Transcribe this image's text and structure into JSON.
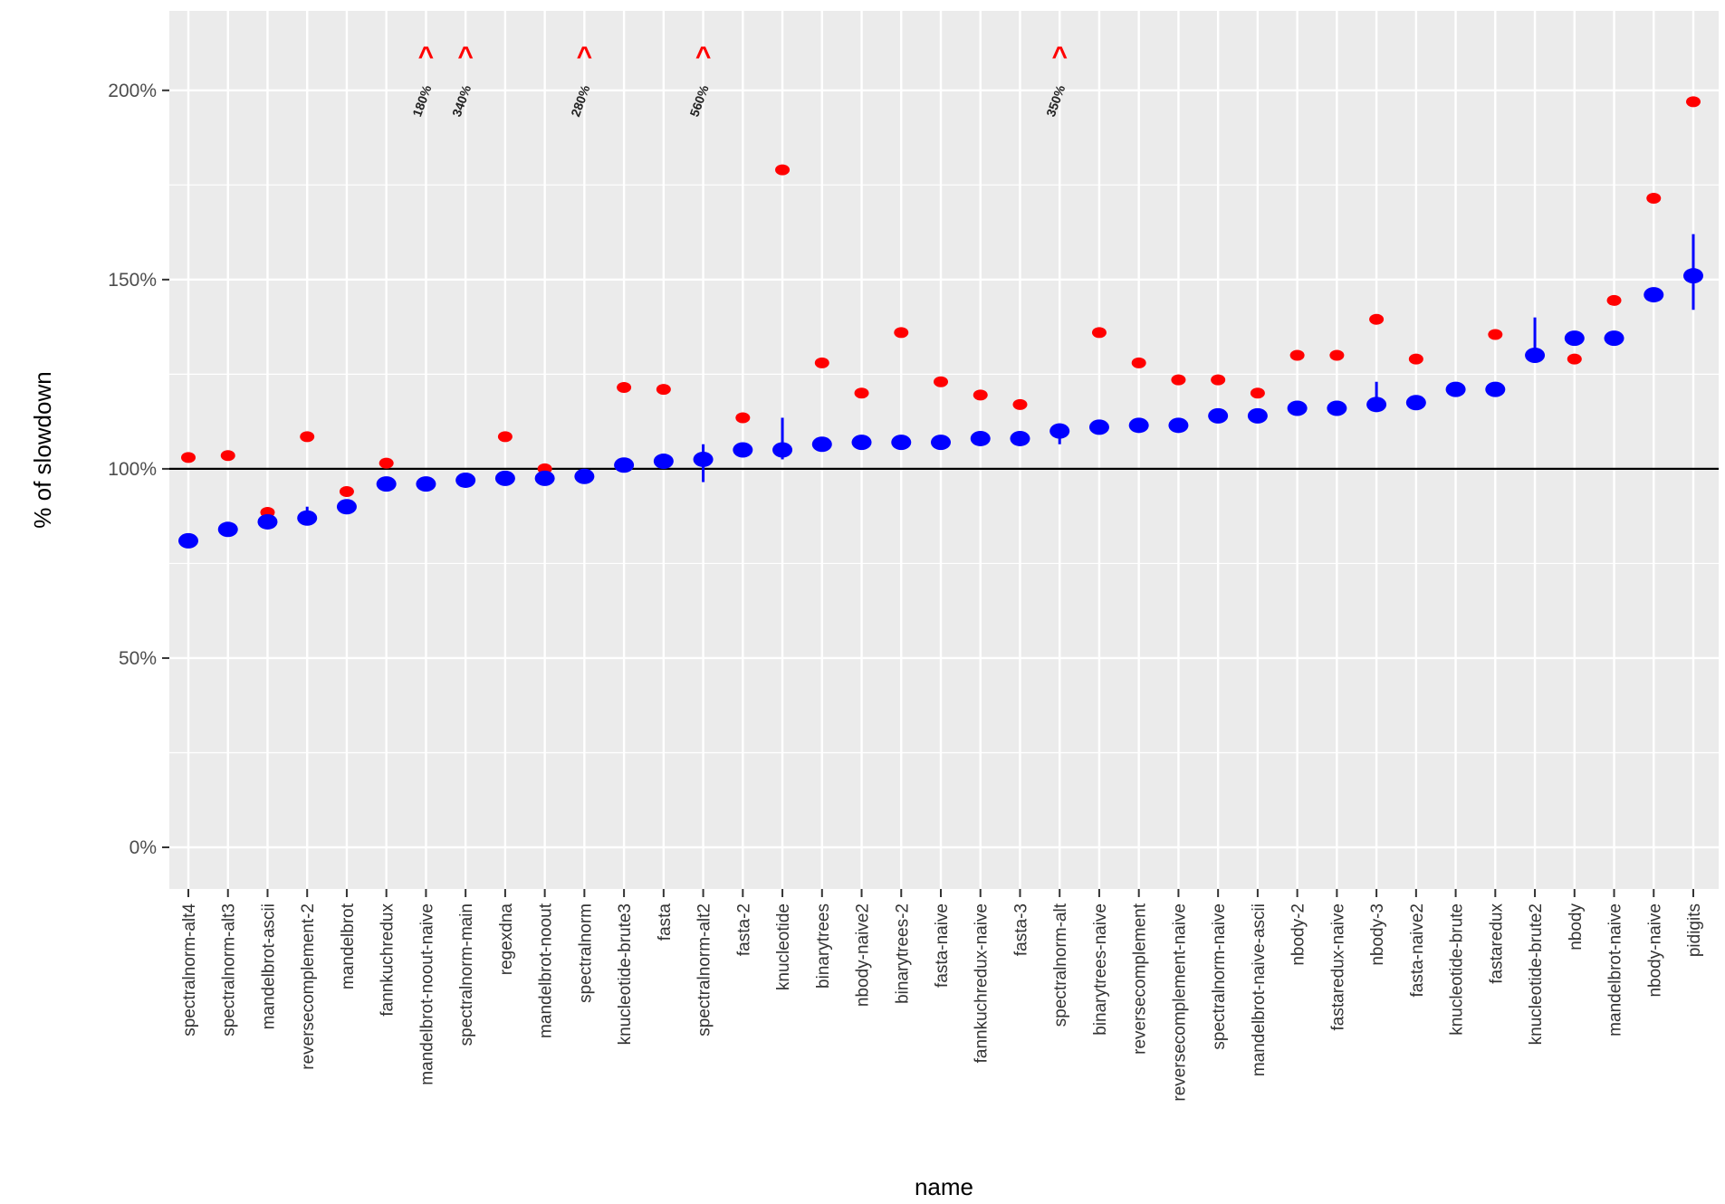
{
  "chart_data": {
    "type": "scatter",
    "xlabel": "name",
    "ylabel": "% of slowdown",
    "ylim": [
      -0.11,
      2.21
    ],
    "yticks": [
      0,
      0.5,
      1.0,
      1.5,
      2.0
    ],
    "ytick_labels": [
      "0%",
      "50%",
      "100%",
      "150%",
      "200%"
    ],
    "reference_line": 1.0,
    "grid": true,
    "legend": "none",
    "colors": {
      "series_a": "#0000ff",
      "series_b": "#ff0000",
      "panel": "#ebebeb",
      "gridline": "#ffffff",
      "reference": "#000000"
    },
    "categories": [
      "spectralnorm-alt4",
      "spectralnorm-alt3",
      "mandelbrot-ascii",
      "reversecomplement-2",
      "mandelbrot",
      "fannkuchredux",
      "mandelbrot-noout-naive",
      "spectralnorm-main",
      "regexdna",
      "mandelbrot-noout",
      "spectralnorm",
      "knucleotide-brute3",
      "fasta",
      "spectralnorm-alt2",
      "fasta-2",
      "knucleotide",
      "binarytrees",
      "nbody-naive2",
      "binarytrees-2",
      "fasta-naive",
      "fannkuchredux-naive",
      "fasta-3",
      "spectralnorm-alt",
      "binarytrees-naive",
      "reversecomplement",
      "reversecomplement-naive",
      "spectralnorm-naive",
      "mandelbrot-naive-ascii",
      "nbody-2",
      "fastaredux-naive",
      "nbody-3",
      "fasta-naive2",
      "knucleotide-brute",
      "fastaredux",
      "knucleotide-brute2",
      "nbody",
      "mandelbrot-naive",
      "nbody-naive",
      "pidigits"
    ],
    "series": [
      {
        "values": [
          0.81,
          0.84,
          0.86,
          0.87,
          0.9,
          0.96,
          0.96,
          0.97,
          0.975,
          0.975,
          0.98,
          1.01,
          1.02,
          1.025,
          1.05,
          1.05,
          1.065,
          1.07,
          1.07,
          1.07,
          1.08,
          1.08,
          1.1,
          1.11,
          1.115,
          1.115,
          1.14,
          1.14,
          1.16,
          1.16,
          1.17,
          1.175,
          1.21,
          1.21,
          1.3,
          1.345,
          1.345,
          1.46,
          1.51
        ],
        "error_low": [
          0.81,
          0.84,
          0.86,
          0.86,
          0.9,
          0.96,
          0.96,
          0.97,
          0.975,
          0.975,
          0.98,
          1.01,
          1.02,
          0.965,
          1.05,
          1.025,
          1.065,
          1.07,
          1.07,
          1.07,
          1.08,
          1.08,
          1.065,
          1.11,
          1.115,
          1.115,
          1.14,
          1.14,
          1.16,
          1.16,
          1.17,
          1.175,
          1.21,
          1.19,
          1.3,
          1.345,
          1.345,
          1.44,
          1.42
        ],
        "error_high": [
          0.81,
          0.84,
          0.86,
          0.9,
          0.9,
          0.96,
          0.96,
          0.97,
          0.975,
          0.975,
          0.98,
          1.01,
          1.02,
          1.065,
          1.05,
          1.135,
          1.065,
          1.07,
          1.07,
          1.07,
          1.08,
          1.08,
          1.12,
          1.11,
          1.115,
          1.115,
          1.14,
          1.14,
          1.16,
          1.16,
          1.23,
          1.175,
          1.21,
          1.21,
          1.4,
          1.345,
          1.345,
          1.46,
          1.62
        ]
      },
      {
        "values": [
          1.03,
          1.035,
          0.885,
          1.085,
          0.94,
          1.015,
          null,
          null,
          1.085,
          1.0,
          null,
          1.215,
          1.21,
          null,
          1.135,
          1.79,
          1.28,
          1.2,
          1.36,
          1.23,
          1.195,
          1.17,
          null,
          1.36,
          1.28,
          1.235,
          1.235,
          1.2,
          1.3,
          1.3,
          1.395,
          1.29,
          1.21,
          1.355,
          1.3,
          1.29,
          1.445,
          1.715,
          1.97
        ]
      }
    ],
    "clipped": [
      {
        "category": "mandelbrot-noout-naive",
        "label": "180%"
      },
      {
        "category": "spectralnorm-main",
        "label": "340%"
      },
      {
        "category": "spectralnorm",
        "label": "280%"
      },
      {
        "category": "spectralnorm-alt2",
        "label": "560%"
      },
      {
        "category": "spectralnorm-alt",
        "label": "350%"
      }
    ],
    "clip_marker": "^"
  }
}
